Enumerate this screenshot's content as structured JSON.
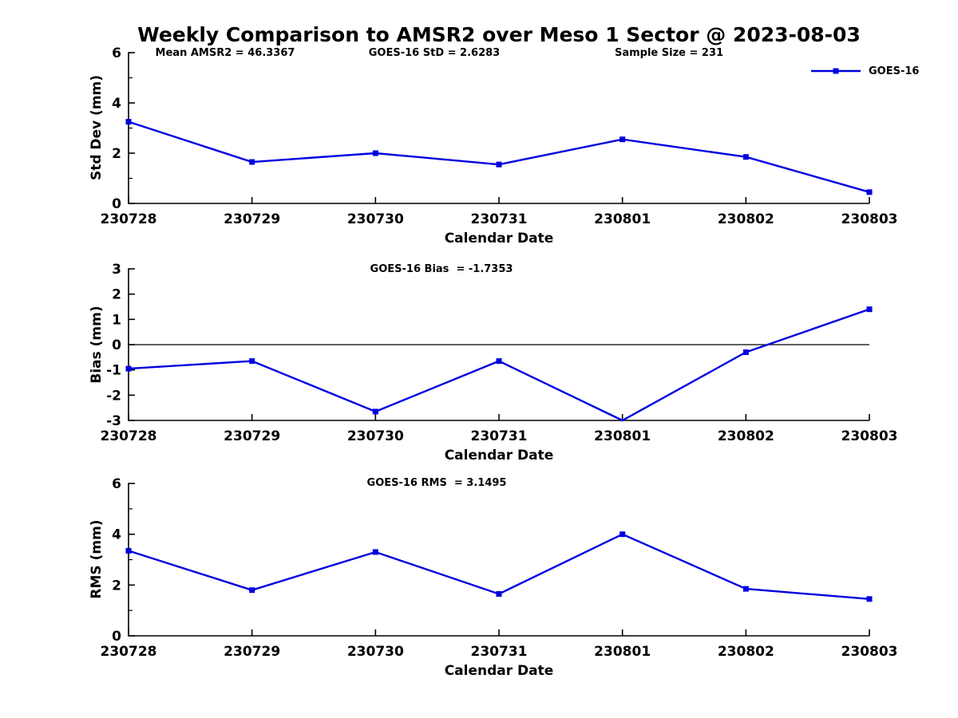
{
  "title": "Weekly Comparison to AMSR2 over Meso 1 Sector @ 2023-08-03",
  "legend": {
    "label": "GOES-16"
  },
  "colors": {
    "line": "#0000E0",
    "axis": "#000000",
    "background": "#FFFFFF"
  },
  "chart_data": [
    {
      "type": "line",
      "name": "std-dev-vs-date",
      "annotations": [
        "Mean AMSR2 = 46.3367",
        "GOES-16 StD = 2.6283",
        "Sample Size = 231"
      ],
      "categories": [
        "230728",
        "230729",
        "230730",
        "230731",
        "230801",
        "230802",
        "230803"
      ],
      "series": [
        {
          "name": "GOES-16",
          "values": [
            3.25,
            1.65,
            2.0,
            1.55,
            2.55,
            1.85,
            0.45
          ]
        }
      ],
      "xlabel": "Calendar Date",
      "ylabel": "Std Dev (mm)",
      "ylim": [
        0,
        6
      ],
      "yticks": [
        0,
        2,
        4,
        6
      ],
      "yticks_minor": [
        1,
        3,
        5
      ],
      "zero_line": false,
      "grid": false,
      "legend_position": "top-right"
    },
    {
      "type": "line",
      "name": "bias-vs-date",
      "annotations": [
        "GOES-16 Bias  = -1.7353"
      ],
      "categories": [
        "230728",
        "230729",
        "230730",
        "230731",
        "230801",
        "230802",
        "230803"
      ],
      "series": [
        {
          "name": "GOES-16",
          "values": [
            -0.95,
            -0.65,
            -2.65,
            -0.65,
            -3.0,
            -0.3,
            1.4
          ]
        }
      ],
      "xlabel": "Calendar Date",
      "ylabel": "Bias (mm)",
      "ylim": [
        -3,
        3
      ],
      "yticks": [
        -3,
        -2,
        -1,
        0,
        1,
        2,
        3
      ],
      "yticks_minor": [],
      "zero_line": true,
      "grid": false
    },
    {
      "type": "line",
      "name": "rms-vs-date",
      "annotations": [
        "GOES-16 RMS  = 3.1495"
      ],
      "categories": [
        "230728",
        "230729",
        "230730",
        "230731",
        "230801",
        "230802",
        "230803"
      ],
      "series": [
        {
          "name": "GOES-16",
          "values": [
            3.35,
            1.8,
            3.3,
            1.65,
            4.0,
            1.85,
            1.45
          ]
        }
      ],
      "xlabel": "Calendar Date",
      "ylabel": "RMS (mm)",
      "ylim": [
        0,
        6
      ],
      "yticks": [
        0,
        2,
        4,
        6
      ],
      "yticks_minor": [
        1,
        3,
        5
      ],
      "zero_line": false,
      "grid": false
    }
  ]
}
